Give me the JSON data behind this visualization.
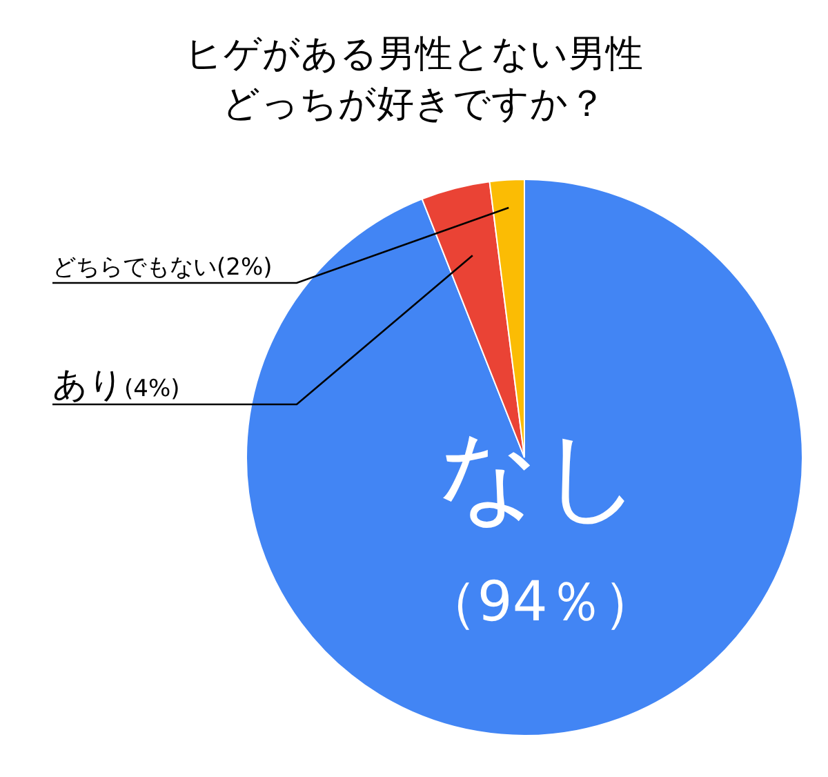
{
  "chart_data": {
    "type": "pie",
    "title": "ヒゲがある男性とない男性どっちが好きですか？",
    "categories": [
      "なし",
      "あり",
      "どちらでもない"
    ],
    "values": [
      94,
      4,
      2
    ],
    "value_labels": [
      "（94％）",
      "(4%)",
      "(2%)"
    ],
    "colors": [
      "#4285f4",
      "#ea4335",
      "#fbbc04"
    ],
    "legend": false
  }
}
